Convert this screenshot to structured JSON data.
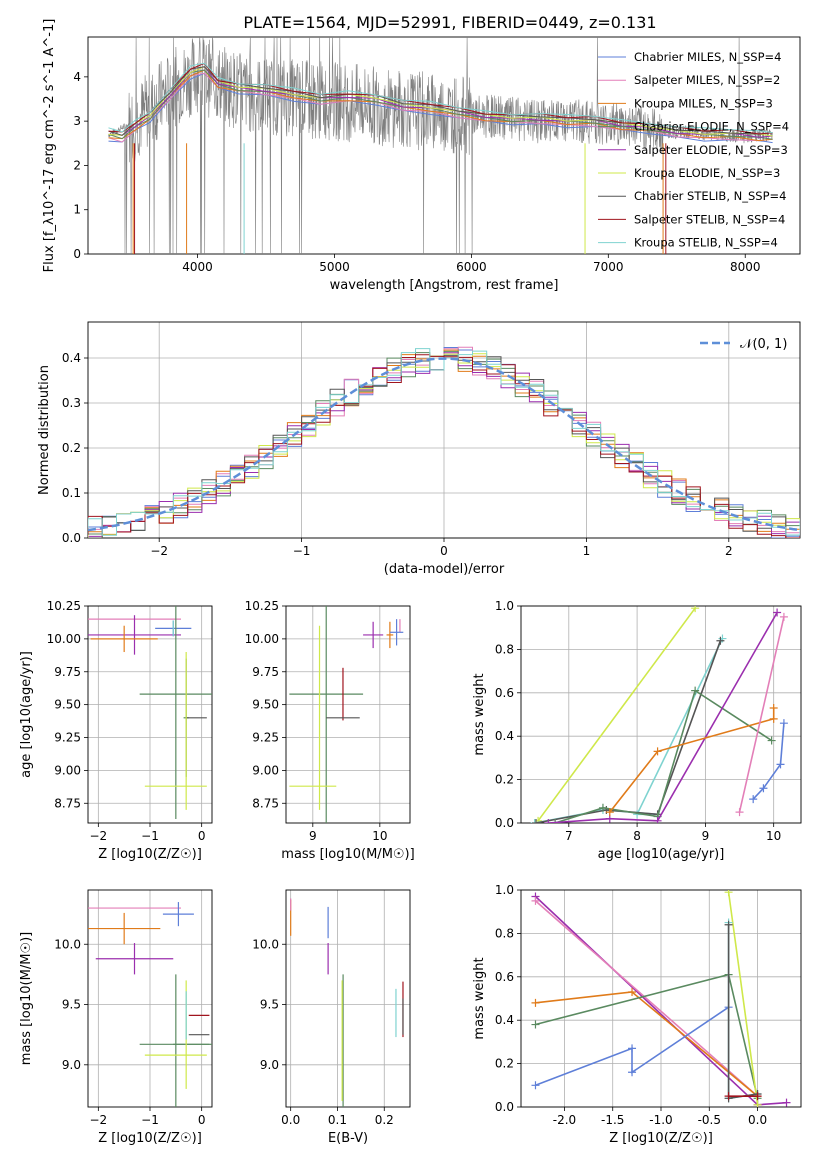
{
  "figure": {
    "title": "PLATE=1564, MJD=52991, FIBERID=0449, z=0.131"
  },
  "colors": {
    "blue": "#5e7fd8",
    "pink": "#e37fb8",
    "orange": "#e07b1a",
    "green": "#5a8a60",
    "purple": "#9b2fae",
    "lime": "#cfe84a",
    "gray": "#7f7f7f",
    "darkred": "#a0141e",
    "cyan": "#7fd3d0"
  },
  "chart_data": [
    {
      "type": "line",
      "id": "spectrum",
      "xlabel": "wavelength [Angstrom, rest frame]",
      "ylabel": "Flux [f_λ10^-17 erg cm^-2 s^-1 A^-1]",
      "xlim": [
        3200,
        8400
      ],
      "ylim": [
        0,
        4.9
      ],
      "xticks": [
        4000,
        5000,
        6000,
        7000,
        8000
      ],
      "yticks": [
        0,
        1,
        2,
        3,
        4
      ],
      "grid": false,
      "legend_position": "right",
      "data_series": {
        "name": "data",
        "color": "#7f7f7f",
        "x": [
          3350,
          3550,
          3800,
          4000,
          4200,
          4400,
          4600,
          4800,
          5000,
          5200,
          5400,
          5600,
          5800,
          6000,
          6200,
          6400,
          6600,
          6800,
          7000,
          7200,
          7400,
          7600,
          7800,
          8000,
          8200
        ],
        "y": [
          2.7,
          3.0,
          3.7,
          4.1,
          3.8,
          3.6,
          3.55,
          3.5,
          3.45,
          3.4,
          3.3,
          3.25,
          3.2,
          3.1,
          3.1,
          3.0,
          3.0,
          3.0,
          2.95,
          2.9,
          2.75,
          2.75,
          2.7,
          2.65,
          2.7
        ]
      },
      "series": [
        {
          "name": "Chabrier MILES, N_SSP=4",
          "color": "#5e7fd8"
        },
        {
          "name": "Salpeter MILES, N_SSP=2",
          "color": "#e37fb8"
        },
        {
          "name": "Kroupa MILES, N_SSP=3",
          "color": "#e07b1a"
        },
        {
          "name": "Chabrier ELODIE, N_SSP=4",
          "color": "#5a8a60"
        },
        {
          "name": "Salpeter ELODIE, N_SSP=3",
          "color": "#9b2fae"
        },
        {
          "name": "Kroupa ELODIE, N_SSP=3",
          "color": "#cfe84a"
        },
        {
          "name": "Chabrier STELIB, N_SSP=4",
          "color": "#555555"
        },
        {
          "name": "Salpeter STELIB, N_SSP=4",
          "color": "#a0141e"
        },
        {
          "name": "Kroupa STELIB, N_SSP=4",
          "color": "#7fd3d0"
        }
      ],
      "model_x": [
        3350,
        3450,
        3550,
        3650,
        3800,
        3950,
        4050,
        4150,
        4300,
        4500,
        4700,
        4900,
        5100,
        5300,
        5500,
        5700,
        5900,
        6100,
        6300,
        6500,
        6700,
        6900,
        7100,
        7300,
        7500,
        7700,
        7900,
        8100,
        8200
      ],
      "model_y": [
        2.7,
        2.65,
        2.9,
        3.1,
        3.6,
        4.1,
        4.2,
        3.85,
        3.75,
        3.7,
        3.6,
        3.5,
        3.55,
        3.5,
        3.35,
        3.3,
        3.2,
        3.1,
        3.05,
        3.05,
        3.0,
        3.0,
        2.9,
        2.85,
        2.75,
        2.7,
        2.7,
        2.65,
        2.65
      ]
    },
    {
      "type": "histogram",
      "id": "residuals",
      "xlabel": "(data-model)/error",
      "ylabel": "Normed distribution",
      "xlim": [
        -2.5,
        2.5
      ],
      "ylim": [
        0,
        0.48
      ],
      "xticks": [
        -2,
        -1,
        0,
        1,
        2
      ],
      "yticks": [
        0.0,
        0.1,
        0.2,
        0.3,
        0.4
      ],
      "grid": true,
      "legend_position": "upper right",
      "legend_label": "𝒩(0, 1)",
      "bin_width": 0.1
    },
    {
      "type": "errorbar",
      "id": "age_vs_Z",
      "xlabel": "Z [log10(Z/Z☉)]",
      "ylabel": "age [log10(age/yr)]",
      "xlim": [
        -2.2,
        0.2
      ],
      "ylim": [
        8.6,
        10.25
      ],
      "xticks": [
        -2,
        -1,
        0
      ],
      "yticks": [
        8.75,
        9.0,
        9.25,
        9.5,
        9.75,
        10.0,
        10.25
      ],
      "grid": true,
      "points": [
        {
          "color": "#e37fb8",
          "x": -1.3,
          "y": 10.15,
          "xerr": 0.9,
          "yerr": 0.0
        },
        {
          "color": "#9b2fae",
          "x": -1.3,
          "y": 10.03,
          "xerr": 0.9,
          "yerr": 0.15
        },
        {
          "color": "#e07b1a",
          "x": -1.5,
          "y": 10.0,
          "xerr": 0.65,
          "yerr": 0.1
        },
        {
          "color": "#5e7fd8",
          "x": -0.55,
          "y": 10.08,
          "xerr": 0.35,
          "yerr": 0.06
        },
        {
          "color": "#7fd3d0",
          "x": -0.55,
          "y": 10.08,
          "xerr": 0.0,
          "yerr": 0.06
        },
        {
          "color": "#5a8a60",
          "x": -0.5,
          "y": 9.58,
          "xerr": 0.7,
          "yerr": 0.95
        },
        {
          "color": "#5a8a60",
          "x": -0.3,
          "y": 9.4,
          "xerr": 0.05,
          "yerr": 0.45
        },
        {
          "color": "#555555",
          "x": -0.1,
          "y": 9.4,
          "xerr": 0.2,
          "yerr": 0.0
        },
        {
          "color": "#cfe84a",
          "x": -0.5,
          "y": 8.88,
          "xerr": 0.6,
          "yerr": 0.0
        },
        {
          "color": "#cfe84a",
          "x": -0.3,
          "y": 9.3,
          "xerr": 0.0,
          "yerr": 0.6
        }
      ]
    },
    {
      "type": "errorbar",
      "id": "age_vs_mass",
      "xlabel": "mass [log10(M/M☉)]",
      "ylabel": "",
      "xlim": [
        8.6,
        10.45
      ],
      "ylim": [
        8.6,
        10.25
      ],
      "xticks": [
        9,
        10
      ],
      "yticks": [
        8.75,
        9.0,
        9.25,
        9.5,
        9.75,
        10.0,
        10.25
      ],
      "grid": true,
      "points": [
        {
          "color": "#9b2fae",
          "x": 9.9,
          "y": 10.03,
          "xerr": 0.15,
          "yerr": 0.1
        },
        {
          "color": "#e37fb8",
          "x": 10.3,
          "y": 10.1,
          "xerr": 0.0,
          "yerr": 0.05
        },
        {
          "color": "#e07b1a",
          "x": 10.15,
          "y": 10.03,
          "xerr": 0.05,
          "yerr": 0.1
        },
        {
          "color": "#5e7fd8",
          "x": 10.25,
          "y": 10.05,
          "xerr": 0.1,
          "yerr": 0.1
        },
        {
          "color": "#5a8a60",
          "x": 9.2,
          "y": 9.58,
          "xerr": 0.55,
          "yerr": 1.0
        },
        {
          "color": "#a0141e",
          "x": 9.45,
          "y": 9.58,
          "xerr": 0.0,
          "yerr": 0.2
        },
        {
          "color": "#555555",
          "x": 9.45,
          "y": 9.4,
          "xerr": 0.25,
          "yerr": 0.0
        },
        {
          "color": "#cfe84a",
          "x": 9.0,
          "y": 8.88,
          "xerr": 0.35,
          "yerr": 0.0
        },
        {
          "color": "#cfe84a",
          "x": 9.1,
          "y": 9.4,
          "xerr": 0.0,
          "yerr": 0.7
        }
      ]
    },
    {
      "type": "line",
      "id": "massweight_vs_age",
      "xlabel": "age [log10(age/yr)]",
      "ylabel": "mass weight",
      "xlim": [
        6.3,
        10.4
      ],
      "ylim": [
        0,
        1.0
      ],
      "xticks": [
        7,
        8,
        9,
        10
      ],
      "yticks": [
        0.0,
        0.2,
        0.4,
        0.6,
        0.8,
        1.0
      ],
      "grid": true,
      "series": [
        {
          "color": "#cfe84a",
          "x": [
            6.55,
            8.85
          ],
          "y": [
            0.01,
            0.99
          ]
        },
        {
          "color": "#7fd3d0",
          "x": [
            6.5,
            7.5,
            8.3,
            8.0,
            9.25
          ],
          "y": [
            0.0,
            0.06,
            0.04,
            0.04,
            0.85
          ]
        },
        {
          "color": "#555555",
          "x": [
            6.52,
            7.55,
            8.3,
            9.22
          ],
          "y": [
            0.0,
            0.06,
            0.04,
            0.84
          ]
        },
        {
          "color": "#5a8a60",
          "x": [
            6.8,
            7.5,
            8.3,
            8.85,
            9.97
          ],
          "y": [
            0.0,
            0.07,
            0.03,
            0.61,
            0.38
          ]
        },
        {
          "color": "#9b2fae",
          "x": [
            6.7,
            7.6,
            8.3,
            10.05
          ],
          "y": [
            0.0,
            0.02,
            0.01,
            0.97
          ]
        },
        {
          "color": "#e07b1a",
          "x": [
            7.6,
            8.3,
            10.0,
            10.0
          ],
          "y": [
            0.05,
            0.33,
            0.48,
            0.53
          ]
        },
        {
          "color": "#e37fb8",
          "x": [
            9.5,
            10.15
          ],
          "y": [
            0.05,
            0.95
          ]
        },
        {
          "color": "#5e7fd8",
          "x": [
            9.7,
            9.85,
            10.1,
            10.15
          ],
          "y": [
            0.11,
            0.16,
            0.27,
            0.46
          ]
        }
      ]
    },
    {
      "type": "errorbar",
      "id": "mass_vs_Z",
      "xlabel": "Z [log10(Z/Z☉)]",
      "ylabel": "mass [log10(M/M☉)]",
      "xlim": [
        -2.2,
        0.2
      ],
      "ylim": [
        8.65,
        10.45
      ],
      "xticks": [
        -2,
        -1,
        0
      ],
      "yticks": [
        9.0,
        9.5,
        10.0
      ],
      "grid": true,
      "points": [
        {
          "color": "#e37fb8",
          "x": -1.3,
          "y": 10.3,
          "xerr": 0.9,
          "yerr": 0.0
        },
        {
          "color": "#e07b1a",
          "x": -1.5,
          "y": 10.13,
          "xerr": 0.7,
          "yerr": 0.13
        },
        {
          "color": "#9b2fae",
          "x": -1.3,
          "y": 9.88,
          "xerr": 0.75,
          "yerr": 0.13
        },
        {
          "color": "#5e7fd8",
          "x": -0.45,
          "y": 10.25,
          "xerr": 0.3,
          "yerr": 0.1
        },
        {
          "color": "#5a8a60",
          "x": -0.5,
          "y": 9.17,
          "xerr": 0.7,
          "yerr": 0.58
        },
        {
          "color": "#5a8a60",
          "x": -0.2,
          "y": 9.17,
          "xerr": 0.35,
          "yerr": 0.0
        },
        {
          "color": "#cfe84a",
          "x": -0.3,
          "y": 9.25,
          "xerr": 0.0,
          "yerr": 0.45
        },
        {
          "color": "#cfe84a",
          "x": -0.5,
          "y": 9.08,
          "xerr": 0.6,
          "yerr": 0.0
        },
        {
          "color": "#a0141e",
          "x": -0.05,
          "y": 9.41,
          "xerr": 0.2,
          "yerr": 0.0
        },
        {
          "color": "#7fd3d0",
          "x": -0.3,
          "y": 9.41,
          "xerr": 0.0,
          "yerr": 0.2
        },
        {
          "color": "#555555",
          "x": -0.05,
          "y": 9.25,
          "xerr": 0.2,
          "yerr": 0.0
        }
      ]
    },
    {
      "type": "errorbar",
      "id": "mass_vs_ebv",
      "xlabel": "E(B-V)",
      "ylabel": "",
      "xlim": [
        -0.01,
        0.255
      ],
      "ylim": [
        8.65,
        10.45
      ],
      "xticks": [
        0.0,
        0.1,
        0.2
      ],
      "yticks": [
        9.0,
        9.5,
        10.0
      ],
      "grid": true,
      "points": [
        {
          "color": "#e07b1a",
          "x": 0.0,
          "y": 10.22,
          "xerr": 0.0,
          "yerr": 0.15
        },
        {
          "color": "#e37fb8",
          "x": 0.0,
          "y": 10.33,
          "xerr": 0.0,
          "yerr": 0.05
        },
        {
          "color": "#5e7fd8",
          "x": 0.08,
          "y": 10.18,
          "xerr": 0.0,
          "yerr": 0.13
        },
        {
          "color": "#9b2fae",
          "x": 0.08,
          "y": 9.88,
          "xerr": 0.0,
          "yerr": 0.13
        },
        {
          "color": "#5a8a60",
          "x": 0.112,
          "y": 9.2,
          "xerr": 0.0,
          "yerr": 0.55
        },
        {
          "color": "#cfe84a",
          "x": 0.11,
          "y": 9.2,
          "xerr": 0.0,
          "yerr": 0.5
        },
        {
          "color": "#7fd3d0",
          "x": 0.225,
          "y": 9.43,
          "xerr": 0.0,
          "yerr": 0.2
        },
        {
          "color": "#a0141e",
          "x": 0.24,
          "y": 9.46,
          "xerr": 0.0,
          "yerr": 0.23
        },
        {
          "color": "#555555",
          "x": 0.24,
          "y": 9.4,
          "xerr": 0.0,
          "yerr": 0.15
        }
      ]
    },
    {
      "type": "line",
      "id": "massweight_vs_Z",
      "xlabel": "Z [log10(Z/Z☉)]",
      "ylabel": "mass weight",
      "xlim": [
        -2.45,
        0.45
      ],
      "ylim": [
        0,
        1.0
      ],
      "xticks": [
        -2.0,
        -1.5,
        -1.0,
        -0.5,
        0.0
      ],
      "yticks": [
        0.0,
        0.2,
        0.4,
        0.6,
        0.8,
        1.0
      ],
      "grid": true,
      "series": [
        {
          "color": "#9b2fae",
          "x": [
            -2.3,
            0.0,
            0.3
          ],
          "y": [
            0.97,
            0.01,
            0.02
          ]
        },
        {
          "color": "#e37fb8",
          "x": [
            -2.3,
            0.0
          ],
          "y": [
            0.95,
            0.05
          ]
        },
        {
          "color": "#e07b1a",
          "x": [
            -2.3,
            -1.3,
            0.0
          ],
          "y": [
            0.48,
            0.53,
            0.05
          ]
        },
        {
          "color": "#5a8a60",
          "x": [
            -2.3,
            -0.3,
            0.0
          ],
          "y": [
            0.38,
            0.61,
            0.04
          ]
        },
        {
          "color": "#5e7fd8",
          "x": [
            -2.3,
            -1.3,
            -1.3,
            -0.3
          ],
          "y": [
            0.1,
            0.27,
            0.16,
            0.46
          ]
        },
        {
          "color": "#cfe84a",
          "x": [
            -0.3,
            0.0
          ],
          "y": [
            0.99,
            0.01
          ]
        },
        {
          "color": "#7fd3d0",
          "x": [
            -0.3,
            -0.3,
            0.0
          ],
          "y": [
            0.85,
            0.04,
            0.06
          ]
        },
        {
          "color": "#555555",
          "x": [
            -0.3,
            -0.3,
            0.0
          ],
          "y": [
            0.84,
            0.04,
            0.06
          ]
        },
        {
          "color": "#a0141e",
          "x": [
            -0.3,
            0.0
          ],
          "y": [
            0.05,
            0.05
          ]
        }
      ]
    }
  ]
}
